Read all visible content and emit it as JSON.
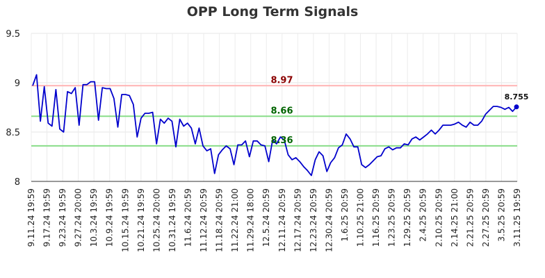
{
  "chart_data": {
    "type": "line",
    "title": "OPP Long Term Signals",
    "xlabel": "",
    "ylabel": "",
    "ylim": [
      8,
      9.5
    ],
    "yticks": [
      "8",
      "8.5",
      "9",
      "9.5"
    ],
    "grid": true,
    "colors": {
      "line": "#0000cc",
      "upper": "#ffb3b3",
      "middle": "#88dd88",
      "lower": "#88dd88",
      "upper_text": "#8b0000",
      "signal_text": "#006400"
    },
    "xtick_labels": [
      "9.11.24 19:59",
      "9.17.24 19:59",
      "9.23.24 19:59",
      "9.27.24 20:00",
      "10.3.24 19:59",
      "10.9.24 19:59",
      "10.15.24 19:59",
      "10.21.24 19:59",
      "10.25.24 20:00",
      "10.31.24 19:59",
      "11.6.24 20:59",
      "11.12.24 20:59",
      "11.18.24 20:59",
      "11.22.24 21:00",
      "11.29.24 18:00",
      "12.5.24 20:59",
      "12.11.24 20:59",
      "12.17.24 20:59",
      "12.23.24 20:59",
      "12.30.24 20:59",
      "1.6.25 20:59",
      "1.10.25 21:00",
      "1.16.25 20:59",
      "1.23.25 20:59",
      "1.29.25 20:59",
      "2.4.25 20:59",
      "2.10.25 20:59",
      "2.14.25 21:00",
      "2.21.25 20:59",
      "2.27.25 20:59",
      "3.5.25 20:59",
      "3.11.25 19:59"
    ],
    "signals": [
      {
        "label": "8.97",
        "value": 8.97,
        "kind": "upper"
      },
      {
        "label": "8.66",
        "value": 8.66,
        "kind": "middle"
      },
      {
        "label": "8.36",
        "value": 8.36,
        "kind": "lower"
      }
    ],
    "last_label": "8.755",
    "series": [
      {
        "values": [
          8.97,
          9.08,
          8.61,
          8.96,
          8.59,
          8.56,
          8.93,
          8.53,
          8.5,
          8.91,
          8.89,
          8.95,
          8.57,
          8.98,
          8.98,
          9.01,
          9.01,
          8.62,
          8.95,
          8.94,
          8.94,
          8.84,
          8.55,
          8.88,
          8.88,
          8.87,
          8.78,
          8.45,
          8.64,
          8.69,
          8.69,
          8.7,
          8.38,
          8.63,
          8.59,
          8.64,
          8.61,
          8.35,
          8.63,
          8.56,
          8.59,
          8.54,
          8.38,
          8.54,
          8.36,
          8.31,
          8.33,
          8.08,
          8.27,
          8.32,
          8.36,
          8.33,
          8.17,
          8.37,
          8.37,
          8.41,
          8.25,
          8.41,
          8.41,
          8.37,
          8.36,
          8.2,
          8.42,
          8.38,
          8.45,
          8.42,
          8.27,
          8.22,
          8.24,
          8.2,
          8.15,
          8.11,
          8.06,
          8.22,
          8.3,
          8.26,
          8.1,
          8.19,
          8.24,
          8.34,
          8.37,
          8.48,
          8.43,
          8.35,
          8.35,
          8.17,
          8.14,
          8.17,
          8.21,
          8.25,
          8.26,
          8.33,
          8.35,
          8.32,
          8.34,
          8.34,
          8.38,
          8.37,
          8.43,
          8.45,
          8.42,
          8.45,
          8.48,
          8.52,
          8.48,
          8.52,
          8.57,
          8.57,
          8.57,
          8.58,
          8.6,
          8.57,
          8.55,
          8.6,
          8.57,
          8.57,
          8.61,
          8.68,
          8.72,
          8.76,
          8.76,
          8.75,
          8.73,
          8.75,
          8.71,
          8.755
        ]
      }
    ]
  }
}
